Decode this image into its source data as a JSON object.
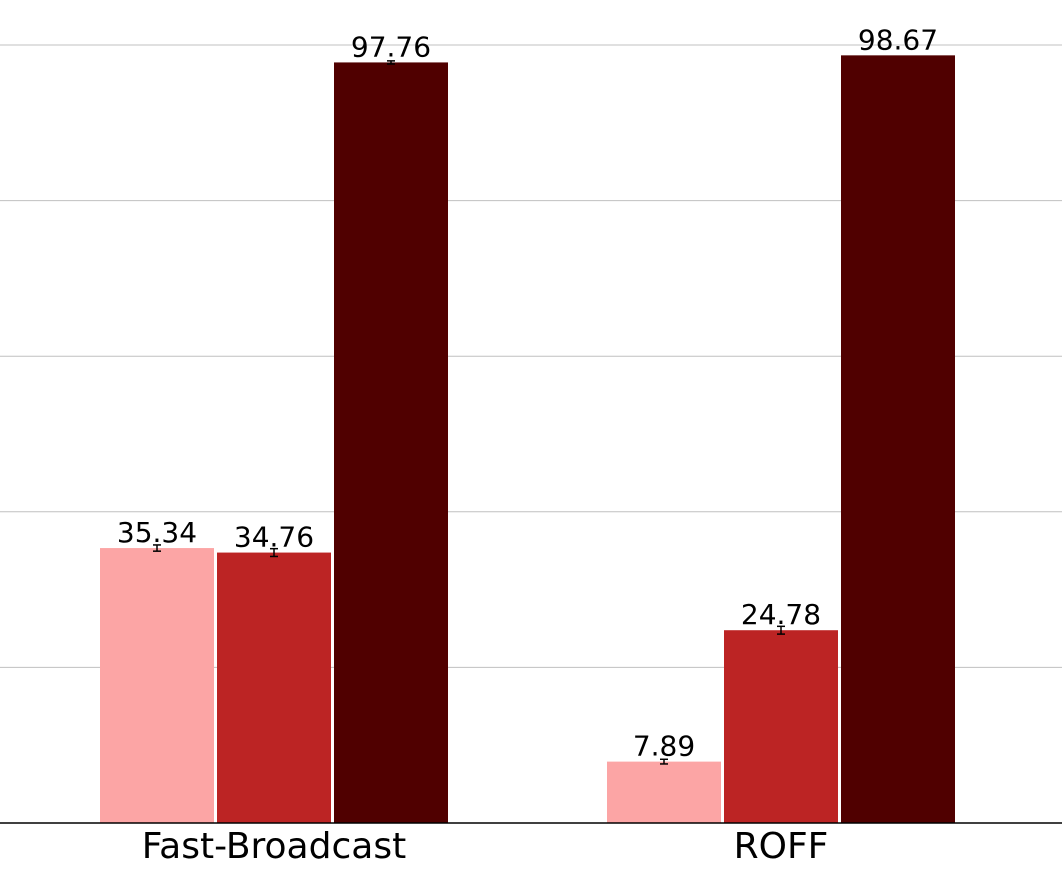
{
  "chart_data": {
    "type": "bar",
    "title": "",
    "xlabel": "",
    "ylabel": "",
    "categories": [
      "Fast-Broadcast",
      "ROFF"
    ],
    "ylim": [
      0,
      100
    ],
    "grid": true,
    "series": [
      {
        "values": [
          35.34,
          7.89
        ],
        "errors": [
          0.4,
          0.3
        ],
        "color": "#fca5a5"
      },
      {
        "values": [
          34.76,
          24.78
        ],
        "errors": [
          0.5,
          0.5
        ],
        "color": "#bc2424"
      },
      {
        "values": [
          97.76,
          98.67
        ],
        "errors": [
          0.2,
          0.0
        ],
        "color": "#500000"
      }
    ],
    "data_labels": [
      [
        "35.34",
        "7.89"
      ],
      [
        "34.76",
        "24.78"
      ],
      [
        "97.76",
        "98.67"
      ]
    ]
  }
}
